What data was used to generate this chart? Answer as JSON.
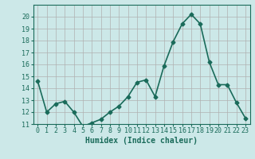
{
  "x": [
    0,
    1,
    2,
    3,
    4,
    5,
    6,
    7,
    8,
    9,
    10,
    11,
    12,
    13,
    14,
    15,
    16,
    17,
    18,
    19,
    20,
    21,
    22,
    23
  ],
  "y": [
    14.6,
    12.0,
    12.7,
    12.9,
    12.0,
    10.8,
    11.1,
    11.4,
    12.0,
    12.5,
    13.3,
    14.5,
    14.7,
    13.3,
    15.9,
    17.9,
    19.4,
    20.2,
    19.4,
    16.2,
    14.3,
    14.3,
    12.8,
    11.5
  ],
  "xlabel": "Humidex (Indice chaleur)",
  "ylim": [
    11,
    21
  ],
  "xlim": [
    -0.5,
    23.5
  ],
  "yticks": [
    11,
    12,
    13,
    14,
    15,
    16,
    17,
    18,
    19,
    20
  ],
  "xticks": [
    0,
    1,
    2,
    3,
    4,
    5,
    6,
    7,
    8,
    9,
    10,
    11,
    12,
    13,
    14,
    15,
    16,
    17,
    18,
    19,
    20,
    21,
    22,
    23
  ],
  "line_color": "#1a6b5a",
  "marker": "D",
  "marker_size": 2.5,
  "bg_color": "#cce8e8",
  "grid_color_major": "#b0b0b0",
  "grid_color_minor": "#d8d8d8",
  "ax_color": "#1a6b5a",
  "tick_label_color": "#1a6b5a",
  "xlabel_color": "#1a6b5a",
  "xlabel_fontsize": 7,
  "tick_fontsize": 6,
  "linewidth": 1.2
}
